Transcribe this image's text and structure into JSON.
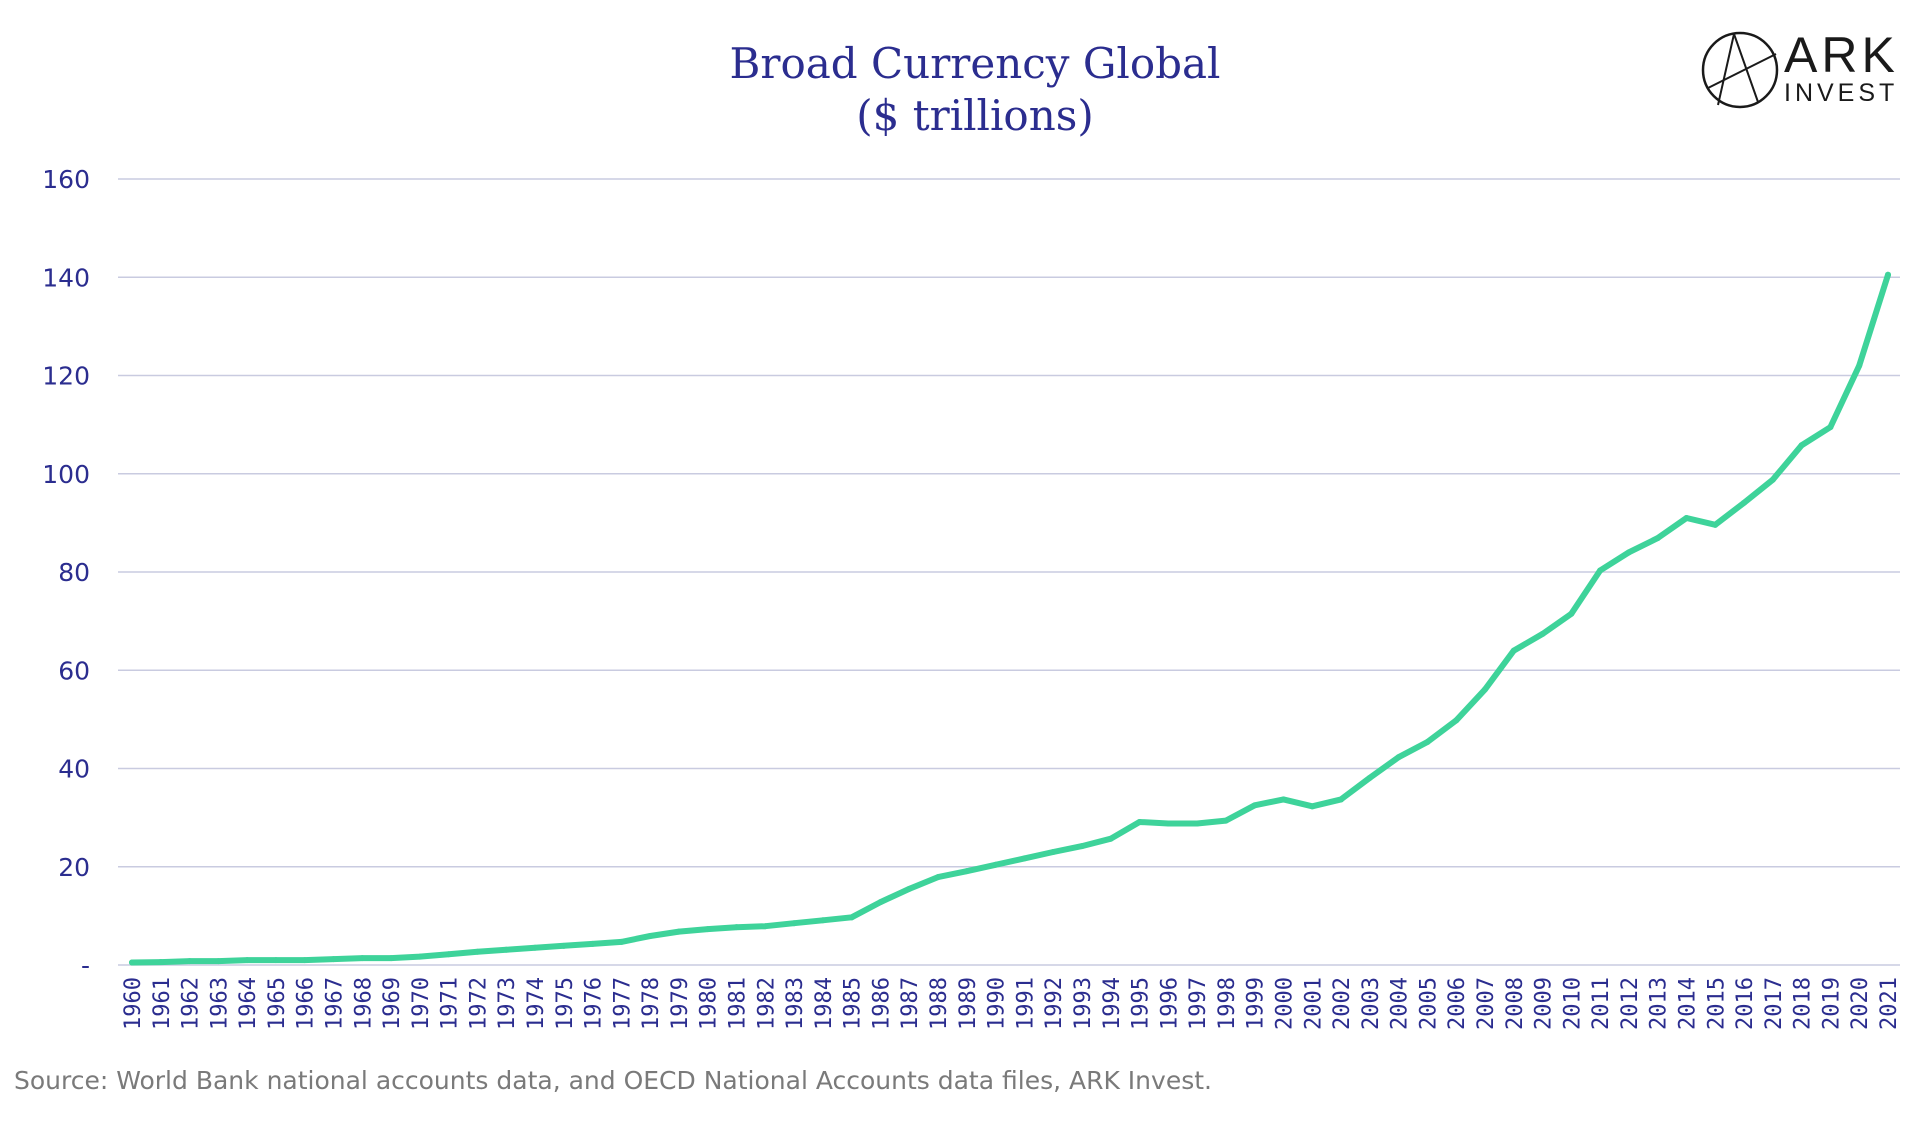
{
  "chart_data": {
    "type": "line",
    "title_line1": "Broad Currency Global",
    "title_line2": "($ trillions)",
    "ylim": [
      0,
      160
    ],
    "yticks": [
      {
        "value": 0,
        "label": "-"
      },
      {
        "value": 20,
        "label": "20"
      },
      {
        "value": 40,
        "label": "40"
      },
      {
        "value": 60,
        "label": "60"
      },
      {
        "value": 80,
        "label": "80"
      },
      {
        "value": 100,
        "label": "100"
      },
      {
        "value": 120,
        "label": "120"
      },
      {
        "value": 140,
        "label": "140"
      },
      {
        "value": 160,
        "label": "160"
      }
    ],
    "grid": true,
    "legend": "none",
    "line_color": "#3ed39a",
    "grid_color": "#c9cbe0",
    "series": [
      {
        "x": [
          "1960",
          "1961",
          "1962",
          "1963",
          "1964",
          "1965",
          "1966",
          "1967",
          "1968",
          "1969",
          "1970",
          "1971",
          "1972",
          "1973",
          "1974",
          "1975",
          "1976",
          "1977",
          "1978",
          "1979",
          "1980",
          "1981",
          "1982",
          "1983",
          "1984",
          "1985",
          "1986",
          "1987",
          "1988",
          "1989",
          "1990",
          "1991",
          "1992",
          "1993",
          "1994",
          "1995",
          "1996",
          "1997",
          "1998",
          "1999",
          "2000",
          "2001",
          "2002",
          "2003",
          "2004",
          "2005",
          "2006",
          "2007",
          "2008",
          "2009",
          "2010",
          "2011",
          "2012",
          "2013",
          "2014",
          "2015",
          "2016",
          "2017",
          "2018",
          "2019",
          "2020",
          "2021"
        ],
        "values": [
          0.5,
          0.6,
          0.8,
          0.8,
          1.0,
          1.0,
          1.0,
          1.2,
          1.4,
          1.4,
          1.7,
          2.2,
          2.7,
          3.1,
          3.5,
          3.9,
          4.3,
          4.7,
          5.9,
          6.8,
          7.3,
          7.7,
          7.9,
          8.5,
          9.1,
          9.7,
          12.8,
          15.5,
          17.9,
          19.1,
          20.4,
          21.7,
          23.0,
          24.2,
          25.7,
          29.1,
          28.8,
          28.8,
          29.4,
          32.5,
          33.7,
          32.3,
          33.7,
          38.1,
          42.3,
          45.4,
          49.8,
          56.1,
          64.0,
          67.4,
          71.5,
          80.3,
          84.0,
          86.9,
          91.0,
          89.6,
          94.1,
          98.8,
          105.8,
          109.5,
          122.0,
          140.5
        ]
      }
    ],
    "source": "Source: World Bank national accounts data, and OECD National Accounts data files, ARK Invest."
  },
  "logo": {
    "line1": "ARK",
    "line2": "INVEST",
    "icon": "ark-compass-logo-icon"
  }
}
